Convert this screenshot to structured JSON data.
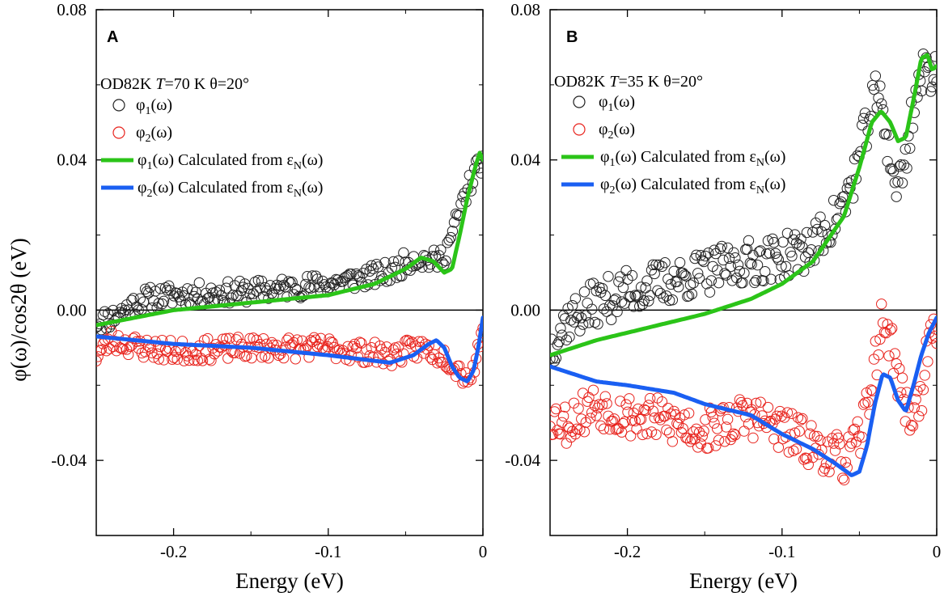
{
  "colors": {
    "phi1_exp": "#222222",
    "phi2_exp": "#e8231d",
    "phi1_calc": "#2bc418",
    "phi2_calc": "#1a5ff2"
  },
  "shared": {
    "ylabel": "φ(ω)/cos2θ (eV)",
    "xlabel": "Energy (eV)"
  },
  "chart_data": [
    {
      "type": "scatter",
      "panel": "A",
      "annotation": {
        "sample": "OD82K",
        "T_symbol": "T",
        "T_value": "=70 K",
        "theta": "θ=20°"
      },
      "xlabel": "Energy (eV)",
      "ylabel": "φ(ω)/cos2θ (eV)",
      "xlim": [
        -0.25,
        0.0
      ],
      "ylim": [
        -0.06,
        0.08
      ],
      "xticks": [
        -0.2,
        -0.1,
        0.0
      ],
      "xtick_labels": [
        "-0.2",
        "-0.1",
        "0"
      ],
      "yticks": [
        -0.04,
        0.0,
        0.04,
        0.08
      ],
      "ytick_labels": [
        "-0.04",
        "0.00",
        "0.04",
        "0.08"
      ],
      "zero_line": true,
      "legend": [
        {
          "label_base": "φ",
          "label_sub": "1",
          "label_rest": "(ω)",
          "label_tail_base": "",
          "label_tail_sub": "",
          "label_tail_rest": "",
          "marker": "circle",
          "color_key": "phi1_exp"
        },
        {
          "label_base": "φ",
          "label_sub": "2",
          "label_rest": "(ω)",
          "label_tail_base": "",
          "label_tail_sub": "",
          "label_tail_rest": "",
          "marker": "circle",
          "color_key": "phi2_exp"
        },
        {
          "label_base": "φ",
          "label_sub": "1",
          "label_rest": "(ω) Calculated from ",
          "label_tail_base": "ε",
          "label_tail_sub": "N",
          "label_tail_rest": "(ω)",
          "marker": "line",
          "color_key": "phi1_calc"
        },
        {
          "label_base": "φ",
          "label_sub": "2",
          "label_rest": "(ω) Calculated from ",
          "label_tail_base": "ε",
          "label_tail_sub": "N",
          "label_tail_rest": "(ω)",
          "marker": "line",
          "color_key": "phi2_calc"
        }
      ],
      "series": [
        {
          "key": "phi1_exp",
          "kind": "scatter",
          "anchors": [
            [
              -0.25,
              -0.003
            ],
            [
              -0.24,
              -0.002
            ],
            [
              -0.22,
              0.003
            ],
            [
              -0.2,
              0.004
            ],
            [
              -0.15,
              0.005
            ],
            [
              -0.1,
              0.007
            ],
            [
              -0.06,
              0.01
            ],
            [
              -0.045,
              0.014
            ],
            [
              -0.03,
              0.013
            ],
            [
              -0.025,
              0.015
            ],
            [
              -0.02,
              0.02
            ],
            [
              -0.012,
              0.03
            ],
            [
              -0.005,
              0.037
            ],
            [
              0.0,
              0.04
            ]
          ],
          "noise": 0.003,
          "points": 230,
          "seed": 11
        },
        {
          "key": "phi2_exp",
          "kind": "scatter",
          "anchors": [
            [
              -0.25,
              -0.012
            ],
            [
              -0.24,
              -0.008
            ],
            [
              -0.22,
              -0.01
            ],
            [
              -0.2,
              -0.011
            ],
            [
              -0.15,
              -0.01
            ],
            [
              -0.1,
              -0.01
            ],
            [
              -0.06,
              -0.012
            ],
            [
              -0.04,
              -0.01
            ],
            [
              -0.025,
              -0.012
            ],
            [
              -0.015,
              -0.016
            ],
            [
              -0.01,
              -0.018
            ],
            [
              -0.005,
              -0.015
            ],
            [
              -0.002,
              -0.008
            ],
            [
              0.0,
              -0.002
            ]
          ],
          "noise": 0.003,
          "points": 230,
          "seed": 23
        },
        {
          "key": "phi1_calc",
          "kind": "line",
          "anchors": [
            [
              -0.25,
              -0.004
            ],
            [
              -0.2,
              0.0
            ],
            [
              -0.15,
              0.002
            ],
            [
              -0.1,
              0.004
            ],
            [
              -0.07,
              0.007
            ],
            [
              -0.05,
              0.011
            ],
            [
              -0.04,
              0.014
            ],
            [
              -0.032,
              0.013
            ],
            [
              -0.025,
              0.01
            ],
            [
              -0.02,
              0.011
            ],
            [
              -0.015,
              0.02
            ],
            [
              -0.01,
              0.03
            ],
            [
              -0.005,
              0.038
            ],
            [
              -0.002,
              0.042
            ],
            [
              0.0,
              0.04
            ]
          ]
        },
        {
          "key": "phi2_calc",
          "kind": "line",
          "anchors": [
            [
              -0.25,
              -0.007
            ],
            [
              -0.2,
              -0.009
            ],
            [
              -0.15,
              -0.01
            ],
            [
              -0.1,
              -0.012
            ],
            [
              -0.06,
              -0.014
            ],
            [
              -0.045,
              -0.012
            ],
            [
              -0.035,
              -0.009
            ],
            [
              -0.03,
              -0.008
            ],
            [
              -0.025,
              -0.01
            ],
            [
              -0.02,
              -0.015
            ],
            [
              -0.015,
              -0.018
            ],
            [
              -0.01,
              -0.019
            ],
            [
              -0.006,
              -0.016
            ],
            [
              -0.003,
              -0.01
            ],
            [
              0.0,
              -0.002
            ]
          ]
        }
      ]
    },
    {
      "type": "scatter",
      "panel": "B",
      "annotation": {
        "sample": "OD82K",
        "T_symbol": "T",
        "T_value": "=35 K",
        "theta": "θ=20°"
      },
      "xlabel": "Energy (eV)",
      "ylabel": "",
      "xlim": [
        -0.25,
        0.0
      ],
      "ylim": [
        -0.06,
        0.08
      ],
      "xticks": [
        -0.2,
        -0.1,
        0.0
      ],
      "xtick_labels": [
        "-0.2",
        "-0.1",
        "0"
      ],
      "yticks": [
        -0.04,
        0.0,
        0.04,
        0.08
      ],
      "ytick_labels": [
        "-0.04",
        "0.00",
        "0.04",
        "0.08"
      ],
      "zero_line": true,
      "legend": [
        {
          "label_base": "φ",
          "label_sub": "1",
          "label_rest": "(ω)",
          "label_tail_base": "",
          "label_tail_sub": "",
          "label_tail_rest": "",
          "marker": "circle",
          "color_key": "phi1_exp"
        },
        {
          "label_base": "φ",
          "label_sub": "2",
          "label_rest": "(ω)",
          "label_tail_base": "",
          "label_tail_sub": "",
          "label_tail_rest": "",
          "marker": "circle",
          "color_key": "phi2_exp"
        },
        {
          "label_base": "φ",
          "label_sub": "1",
          "label_rest": "(ω) Calculated from ",
          "label_tail_base": "ε",
          "label_tail_sub": "N",
          "label_tail_rest": "(ω)",
          "marker": "line",
          "color_key": "phi1_calc"
        },
        {
          "label_base": "φ",
          "label_sub": "2",
          "label_rest": "(ω) Calculated from ",
          "label_tail_base": "ε",
          "label_tail_sub": "N",
          "label_tail_rest": "(ω)",
          "marker": "line",
          "color_key": "phi2_calc"
        }
      ],
      "series": [
        {
          "key": "phi1_exp",
          "kind": "scatter",
          "anchors": [
            [
              -0.25,
              -0.01
            ],
            [
              -0.24,
              -0.003
            ],
            [
              -0.22,
              0.002
            ],
            [
              -0.2,
              0.005
            ],
            [
              -0.17,
              0.008
            ],
            [
              -0.15,
              0.01
            ],
            [
              -0.12,
              0.013
            ],
            [
              -0.1,
              0.014
            ],
            [
              -0.08,
              0.017
            ],
            [
              -0.07,
              0.022
            ],
            [
              -0.06,
              0.028
            ],
            [
              -0.05,
              0.04
            ],
            [
              -0.045,
              0.05
            ],
            [
              -0.04,
              0.057
            ],
            [
              -0.035,
              0.055
            ],
            [
              -0.032,
              0.045
            ],
            [
              -0.028,
              0.036
            ],
            [
              -0.025,
              0.033
            ],
            [
              -0.02,
              0.04
            ],
            [
              -0.015,
              0.055
            ],
            [
              -0.01,
              0.062
            ],
            [
              -0.005,
              0.064
            ],
            [
              0.0,
              0.064
            ]
          ],
          "noise": 0.006,
          "points": 260,
          "seed": 37
        },
        {
          "key": "phi2_exp",
          "kind": "scatter",
          "anchors": [
            [
              -0.25,
              -0.028
            ],
            [
              -0.24,
              -0.03
            ],
            [
              -0.22,
              -0.025
            ],
            [
              -0.2,
              -0.028
            ],
            [
              -0.17,
              -0.03
            ],
            [
              -0.15,
              -0.032
            ],
            [
              -0.12,
              -0.028
            ],
            [
              -0.1,
              -0.032
            ],
            [
              -0.08,
              -0.036
            ],
            [
              -0.06,
              -0.04
            ],
            [
              -0.05,
              -0.035
            ],
            [
              -0.04,
              -0.015
            ],
            [
              -0.035,
              -0.002
            ],
            [
              -0.03,
              -0.008
            ],
            [
              -0.025,
              -0.018
            ],
            [
              -0.02,
              -0.026
            ],
            [
              -0.015,
              -0.028
            ],
            [
              -0.01,
              -0.022
            ],
            [
              -0.005,
              -0.01
            ],
            [
              0.0,
              -0.005
            ]
          ],
          "noise": 0.006,
          "points": 260,
          "seed": 53
        },
        {
          "key": "phi1_calc",
          "kind": "line",
          "anchors": [
            [
              -0.25,
              -0.012
            ],
            [
              -0.22,
              -0.008
            ],
            [
              -0.2,
              -0.006
            ],
            [
              -0.17,
              -0.003
            ],
            [
              -0.15,
              -0.001
            ],
            [
              -0.12,
              0.003
            ],
            [
              -0.1,
              0.007
            ],
            [
              -0.08,
              0.013
            ],
            [
              -0.06,
              0.025
            ],
            [
              -0.05,
              0.038
            ],
            [
              -0.042,
              0.05
            ],
            [
              -0.036,
              0.053
            ],
            [
              -0.03,
              0.05
            ],
            [
              -0.025,
              0.045
            ],
            [
              -0.02,
              0.046
            ],
            [
              -0.015,
              0.056
            ],
            [
              -0.01,
              0.067
            ],
            [
              -0.006,
              0.068
            ],
            [
              -0.003,
              0.064
            ],
            [
              0.0,
              0.065
            ]
          ]
        },
        {
          "key": "phi2_calc",
          "kind": "line",
          "anchors": [
            [
              -0.25,
              -0.015
            ],
            [
              -0.22,
              -0.019
            ],
            [
              -0.2,
              -0.02
            ],
            [
              -0.17,
              -0.022
            ],
            [
              -0.15,
              -0.025
            ],
            [
              -0.12,
              -0.028
            ],
            [
              -0.1,
              -0.033
            ],
            [
              -0.08,
              -0.037
            ],
            [
              -0.065,
              -0.041
            ],
            [
              -0.055,
              -0.044
            ],
            [
              -0.05,
              -0.043
            ],
            [
              -0.045,
              -0.036
            ],
            [
              -0.04,
              -0.025
            ],
            [
              -0.035,
              -0.017
            ],
            [
              -0.03,
              -0.018
            ],
            [
              -0.025,
              -0.024
            ],
            [
              -0.02,
              -0.027
            ],
            [
              -0.015,
              -0.02
            ],
            [
              -0.01,
              -0.012
            ],
            [
              -0.005,
              -0.006
            ],
            [
              0.0,
              -0.002
            ]
          ]
        }
      ]
    }
  ]
}
